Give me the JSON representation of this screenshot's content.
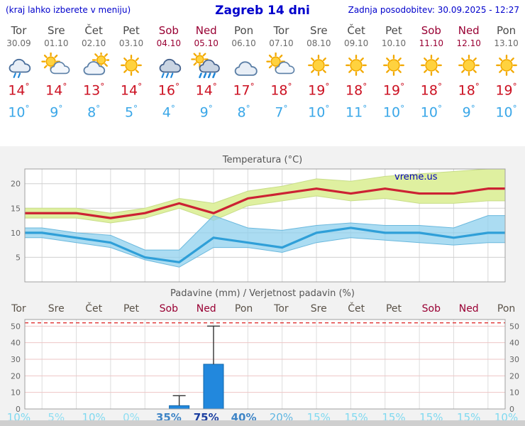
{
  "header": {
    "left_note": "(kraj lahko izberete v meniju)",
    "title": "Zagreb 14 dni",
    "updated": "Zadnja posodobitev: 30.09.2025 - 12:27"
  },
  "deg": "°",
  "colors": {
    "link_blue": "#0000cc",
    "weekend_red": "#990033",
    "weekday_gray": "#4a4a4a",
    "max_temp_red": "#cc1122",
    "min_temp_blue": "#3aa7e8"
  },
  "forecast": {
    "days": [
      {
        "name": "Tor",
        "date": "30.09",
        "weekend": false,
        "icon": "rain-light",
        "tmax": "14",
        "tmin": "10"
      },
      {
        "name": "Sre",
        "date": "01.10",
        "weekend": false,
        "icon": "partly",
        "tmax": "14",
        "tmin": "9"
      },
      {
        "name": "Čet",
        "date": "02.10",
        "weekend": false,
        "icon": "cloud-sun",
        "tmax": "13",
        "tmin": "8"
      },
      {
        "name": "Pet",
        "date": "03.10",
        "weekend": false,
        "icon": "sun",
        "tmax": "14",
        "tmin": "5"
      },
      {
        "name": "Sob",
        "date": "04.10",
        "weekend": true,
        "icon": "rain",
        "tmax": "16",
        "tmin": "4"
      },
      {
        "name": "Ned",
        "date": "05.10",
        "weekend": true,
        "icon": "rain-sun",
        "tmax": "14",
        "tmin": "9"
      },
      {
        "name": "Pon",
        "date": "06.10",
        "weekend": false,
        "icon": "cloudy",
        "tmax": "17",
        "tmin": "8"
      },
      {
        "name": "Tor",
        "date": "07.10",
        "weekend": false,
        "icon": "partly",
        "tmax": "18",
        "tmin": "7"
      },
      {
        "name": "Sre",
        "date": "08.10",
        "weekend": false,
        "icon": "sun",
        "tmax": "19",
        "tmin": "10"
      },
      {
        "name": "Čet",
        "date": "09.10",
        "weekend": false,
        "icon": "sun",
        "tmax": "18",
        "tmin": "11"
      },
      {
        "name": "Pet",
        "date": "10.10",
        "weekend": false,
        "icon": "sun",
        "tmax": "19",
        "tmin": "10"
      },
      {
        "name": "Sob",
        "date": "11.10",
        "weekend": true,
        "icon": "sun",
        "tmax": "18",
        "tmin": "10"
      },
      {
        "name": "Ned",
        "date": "12.10",
        "weekend": true,
        "icon": "sun",
        "tmax": "18",
        "tmin": "9"
      },
      {
        "name": "Pon",
        "date": "13.10",
        "weekend": false,
        "icon": "sun",
        "tmax": "19",
        "tmin": "10"
      }
    ]
  },
  "chart_data": [
    {
      "type": "line",
      "title": "Temperatura (°C)",
      "watermark": "vreme.us",
      "categories": [
        "Tor",
        "Sre",
        "Čet",
        "Pet",
        "Sob",
        "Ned",
        "Pon",
        "Tor",
        "Sre",
        "Čet",
        "Pet",
        "Sob",
        "Ned",
        "Pon"
      ],
      "ylim": [
        0,
        23
      ],
      "yticks": [
        5,
        10,
        15,
        20
      ],
      "grid": true,
      "series": [
        {
          "name": "max temperature",
          "color": "#cc2233",
          "values": [
            14,
            14,
            13,
            14,
            16,
            14,
            17,
            18,
            19,
            18,
            19,
            18,
            18,
            19
          ]
        },
        {
          "name": "min temperature",
          "color": "#2f9fd8",
          "values": [
            10,
            9,
            8,
            5,
            4,
            9,
            8,
            7,
            10,
            11,
            10,
            10,
            9,
            10
          ]
        }
      ],
      "bands": [
        {
          "name": "max range",
          "color": "#dff0a0",
          "edge": "#c8dd88",
          "opacity": 1,
          "upper": [
            15,
            15,
            14,
            15,
            17,
            16,
            18.5,
            19.5,
            21,
            20.5,
            21.5,
            22,
            22.5,
            23
          ],
          "lower": [
            13,
            13,
            12,
            13,
            15,
            12.5,
            15.5,
            16.5,
            17.5,
            16.5,
            17,
            16,
            16,
            16.5
          ]
        },
        {
          "name": "min range",
          "color": "#8fd0ee",
          "edge": "#6ab8dd",
          "opacity": 0.75,
          "upper": [
            11,
            10,
            9.5,
            6.5,
            6.5,
            13.5,
            11,
            10.5,
            11.5,
            12,
            11.5,
            11.5,
            11,
            13.5
          ],
          "lower": [
            9,
            8,
            7,
            4.5,
            3,
            7,
            7,
            6,
            8,
            9,
            8.5,
            8,
            7.5,
            8
          ]
        }
      ]
    },
    {
      "type": "bar",
      "title": "Padavine (mm) / Verjetnost padavin (%)",
      "categories": [
        "Tor",
        "Sre",
        "Čet",
        "Pet",
        "Sob",
        "Ned",
        "Pon",
        "Tor",
        "Sre",
        "Čet",
        "Pet",
        "Sob",
        "Ned",
        "Pon"
      ],
      "weekend": [
        false,
        false,
        false,
        false,
        true,
        true,
        false,
        false,
        false,
        false,
        false,
        true,
        true,
        false
      ],
      "ylim": [
        0,
        54
      ],
      "yticks": [
        0,
        10,
        20,
        30,
        40,
        50
      ],
      "values": [
        0,
        0,
        0,
        0,
        2,
        27,
        0,
        0,
        0,
        0,
        0,
        0,
        0,
        0
      ],
      "whisker_max": [
        null,
        null,
        null,
        null,
        8,
        50,
        null,
        null,
        null,
        null,
        null,
        null,
        null,
        null
      ],
      "threshold_line": 52,
      "threshold_color": "#e03030",
      "bar_color": "#2288dd",
      "probabilities": [
        {
          "label": "10%",
          "color": "#7fd9f0",
          "bold": false
        },
        {
          "label": "5%",
          "color": "#8fdef2",
          "bold": false
        },
        {
          "label": "10%",
          "color": "#7fd9f0",
          "bold": false
        },
        {
          "label": "0%",
          "color": "#8fdef2",
          "bold": false
        },
        {
          "label": "35%",
          "color": "#3f85c6",
          "bold": true
        },
        {
          "label": "75%",
          "color": "#1c3fa0",
          "bold": true
        },
        {
          "label": "40%",
          "color": "#3f85c6",
          "bold": true
        },
        {
          "label": "20%",
          "color": "#5fb6e2",
          "bold": false
        },
        {
          "label": "15%",
          "color": "#7fd9f0",
          "bold": false
        },
        {
          "label": "15%",
          "color": "#7fd9f0",
          "bold": false
        },
        {
          "label": "15%",
          "color": "#7fd9f0",
          "bold": false
        },
        {
          "label": "15%",
          "color": "#7fd9f0",
          "bold": false
        },
        {
          "label": "15%",
          "color": "#7fd9f0",
          "bold": false
        },
        {
          "label": "10%",
          "color": "#7fd9f0",
          "bold": false
        }
      ]
    }
  ]
}
